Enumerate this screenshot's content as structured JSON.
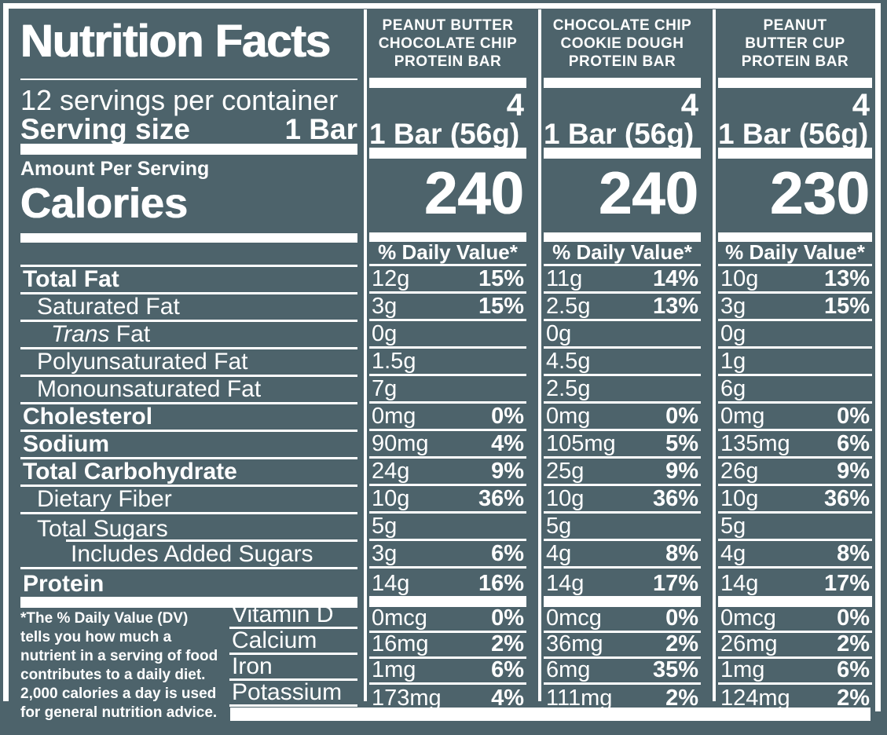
{
  "colors": {
    "background": "#4d636b",
    "foreground": "#ffffff"
  },
  "title": "Nutrition Facts",
  "serving_info": {
    "per_container": "12 servings per container",
    "size_label": "Serving size",
    "size_value": "1 Bar"
  },
  "calories_section": {
    "amount_per_serving": "Amount Per Serving",
    "calories_label": "Calories"
  },
  "daily_value_header": "% Daily Value*",
  "products": [
    {
      "name": "PEANUT BUTTER CHOCOLATE CHIP PROTEIN BAR",
      "name_lines": [
        "PEANUT BUTTER",
        "CHOCOLATE CHIP",
        "PROTEIN BAR"
      ],
      "servings": "4",
      "serving_size": "1 Bar (56g)",
      "calories": "240"
    },
    {
      "name": "CHOCOLATE CHIP COOKIE DOUGH PROTEIN BAR",
      "name_lines": [
        "CHOCOLATE CHIP",
        "COOKIE DOUGH",
        "PROTEIN BAR"
      ],
      "servings": "4",
      "serving_size": "1 Bar (56g)",
      "calories": "240"
    },
    {
      "name": "PEANUT BUTTER CUP PROTEIN BAR",
      "name_lines": [
        "PEANUT",
        "BUTTER CUP",
        "PROTEIN BAR"
      ],
      "servings": "4",
      "serving_size": "1 Bar (56g)",
      "calories": "230"
    }
  ],
  "nutrients": [
    {
      "label": "Total Fat",
      "bold": true,
      "indent": 0,
      "cols": [
        [
          "12g",
          "15%"
        ],
        [
          "11g",
          "14%"
        ],
        [
          "10g",
          "13%"
        ]
      ]
    },
    {
      "label": "Saturated Fat",
      "bold": false,
      "indent": 1,
      "cols": [
        [
          "3g",
          "15%"
        ],
        [
          "2.5g",
          "13%"
        ],
        [
          "3g",
          "15%"
        ]
      ]
    },
    {
      "label_italic": "Trans",
      "label": " Fat",
      "bold": false,
      "indent": 2,
      "cols": [
        [
          "0g",
          ""
        ],
        [
          "0g",
          ""
        ],
        [
          "0g",
          ""
        ]
      ]
    },
    {
      "label": "Polyunsaturated Fat",
      "bold": false,
      "indent": 1,
      "cols": [
        [
          "1.5g",
          ""
        ],
        [
          "4.5g",
          ""
        ],
        [
          "1g",
          ""
        ]
      ]
    },
    {
      "label": "Monounsaturated Fat",
      "bold": false,
      "indent": 1,
      "cols": [
        [
          "7g",
          ""
        ],
        [
          "2.5g",
          ""
        ],
        [
          "6g",
          ""
        ]
      ]
    },
    {
      "label": "Cholesterol",
      "bold": true,
      "indent": 0,
      "cols": [
        [
          "0mg",
          "0%"
        ],
        [
          "0mg",
          "0%"
        ],
        [
          "0mg",
          "0%"
        ]
      ]
    },
    {
      "label": "Sodium",
      "bold": true,
      "indent": 0,
      "cols": [
        [
          "90mg",
          "4%"
        ],
        [
          "105mg",
          "5%"
        ],
        [
          "135mg",
          "6%"
        ]
      ]
    },
    {
      "label": "Total Carbohydrate",
      "bold": true,
      "indent": 0,
      "cols": [
        [
          "24g",
          "9%"
        ],
        [
          "25g",
          "9%"
        ],
        [
          "26g",
          "9%"
        ]
      ]
    },
    {
      "label": "Dietary Fiber",
      "bold": false,
      "indent": 1,
      "cols": [
        [
          "10g",
          "36%"
        ],
        [
          "10g",
          "36%"
        ],
        [
          "10g",
          "36%"
        ]
      ]
    },
    {
      "label": "Total Sugars",
      "bold": false,
      "indent": 1,
      "cut_border": true,
      "cols": [
        [
          "5g",
          ""
        ],
        [
          "5g",
          ""
        ],
        [
          "5g",
          ""
        ]
      ]
    },
    {
      "label": "Includes Added Sugars",
      "bold": false,
      "indent": 3,
      "cols": [
        [
          "3g",
          "6%"
        ],
        [
          "4g",
          "8%"
        ],
        [
          "4g",
          "8%"
        ]
      ]
    },
    {
      "label": "Protein",
      "bold": true,
      "indent": 0,
      "last": true,
      "cols": [
        [
          "14g",
          "16%"
        ],
        [
          "14g",
          "17%"
        ],
        [
          "14g",
          "17%"
        ]
      ]
    }
  ],
  "vitamins": [
    {
      "label": "Vitamin D",
      "cols": [
        [
          "0mcg",
          "0%"
        ],
        [
          "0mcg",
          "0%"
        ],
        [
          "0mcg",
          "0%"
        ]
      ]
    },
    {
      "label": "Calcium",
      "cols": [
        [
          "16mg",
          "2%"
        ],
        [
          "36mg",
          "2%"
        ],
        [
          "26mg",
          "2%"
        ]
      ]
    },
    {
      "label": "Iron",
      "cols": [
        [
          "1mg",
          "6%"
        ],
        [
          "6mg",
          "35%"
        ],
        [
          "1mg",
          "6%"
        ]
      ]
    },
    {
      "label": "Potassium",
      "cols": [
        [
          "173mg",
          "4%"
        ],
        [
          "111mg",
          "2%"
        ],
        [
          "124mg",
          "2%"
        ]
      ]
    }
  ],
  "footnote_lines": [
    "*The % Daily Value (DV)",
    "tells you how much a",
    "nutrient in a serving of food",
    "contributes to a daily diet.",
    "2,000 calories a day is used",
    "for general nutrition advice."
  ]
}
